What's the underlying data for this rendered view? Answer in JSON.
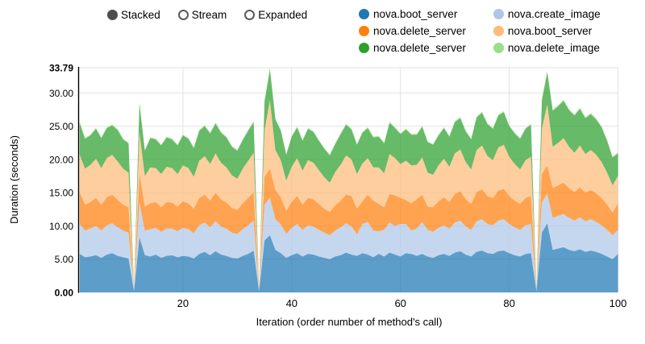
{
  "controls": {
    "options": [
      {
        "label": "Stacked",
        "selected": true
      },
      {
        "label": "Stream",
        "selected": false
      },
      {
        "label": "Expanded",
        "selected": false
      }
    ]
  },
  "legend": {
    "items": [
      {
        "label": "nova.boot_server",
        "color": "#1f77b4"
      },
      {
        "label": "nova.create_image",
        "color": "#aec7e8"
      },
      {
        "label": "nova.delete_server",
        "color": "#ff7f0e"
      },
      {
        "label": "nova.boot_server",
        "color": "#ffbb78"
      },
      {
        "label": "nova.delete_server",
        "color": "#2ca02c"
      },
      {
        "label": "nova.delete_image",
        "color": "#98df8a"
      }
    ]
  },
  "chart_data": {
    "type": "area",
    "mode": "stacked",
    "title": "",
    "xlabel": "Iteration (order number of method's call)",
    "ylabel": "Duration (seconds)",
    "xlim": [
      1,
      100
    ],
    "ylim": [
      0,
      33.79
    ],
    "x_ticks": [
      20,
      40,
      60,
      80,
      100
    ],
    "y_ticks": [
      0,
      5,
      10,
      15,
      20,
      25,
      30,
      33.79
    ],
    "y_tick_labels": [
      "0.00",
      "5.00",
      "10.00",
      "15.00",
      "20.00",
      "25.00",
      "30.00",
      "33.79"
    ],
    "grid": true,
    "legend_position": "top-right",
    "iterations": 100,
    "series": [
      {
        "name": "nova.boot_server",
        "color": "#1f77b4",
        "values": [
          5.8,
          5.3,
          5.4,
          5.6,
          5.2,
          5.7,
          5.9,
          5.5,
          5.3,
          5.1,
          0.2,
          8.3,
          5.6,
          5.4,
          5.7,
          5.2,
          5.5,
          5.6,
          5.3,
          5.5,
          5.4,
          5.1,
          5.8,
          6.1,
          5.6,
          6.2,
          5.7,
          5.5,
          5.2,
          5.1,
          5.5,
          5.8,
          6.3,
          0.2,
          7.8,
          8.6,
          6.4,
          5.9,
          5.2,
          5.6,
          5.9,
          5.4,
          5.8,
          5.7,
          5.4,
          5.2,
          5.0,
          5.4,
          5.6,
          6.0,
          5.7,
          5.5,
          5.9,
          5.7,
          5.3,
          5.8,
          5.4,
          6.0,
          5.7,
          5.4,
          5.9,
          5.8,
          5.5,
          5.8,
          5.4,
          5.2,
          5.6,
          5.8,
          5.5,
          6.0,
          6.2,
          5.7,
          5.4,
          6.1,
          6.3,
          5.9,
          5.8,
          6.2,
          6.3,
          5.9,
          5.6,
          5.4,
          5.8,
          5.9,
          0.2,
          9.0,
          10.4,
          6.4,
          6.6,
          6.8,
          6.4,
          6.2,
          6.5,
          6.1,
          6.3,
          6.1,
          5.8,
          5.4,
          5.0,
          5.8
        ]
      },
      {
        "name": "nova.create_image",
        "color": "#aec7e8",
        "values": [
          4.5,
          4.0,
          4.2,
          4.4,
          4.1,
          4.4,
          4.5,
          4.3,
          4.0,
          3.9,
          0.1,
          5.2,
          3.7,
          4.1,
          4.0,
          3.9,
          4.1,
          4.0,
          3.9,
          4.2,
          4.1,
          3.8,
          4.3,
          4.4,
          4.2,
          4.5,
          4.2,
          4.1,
          3.8,
          3.7,
          4.0,
          4.3,
          4.5,
          0.1,
          5.4,
          5.6,
          4.6,
          4.3,
          3.6,
          4.1,
          4.4,
          4.0,
          4.3,
          4.2,
          4.0,
          3.8,
          3.6,
          3.9,
          4.2,
          4.4,
          4.2,
          3.2,
          4.4,
          4.9,
          4.0,
          3.4,
          4.0,
          4.5,
          4.3,
          4.9,
          4.4,
          3.5,
          4.1,
          4.8,
          4.0,
          3.9,
          4.1,
          4.3,
          4.1,
          4.5,
          4.6,
          4.2,
          4.0,
          4.6,
          4.7,
          4.4,
          4.3,
          4.6,
          4.7,
          4.4,
          4.2,
          4.0,
          4.3,
          4.4,
          0.1,
          4.6,
          4.4,
          4.8,
          4.9,
          5.0,
          4.8,
          4.6,
          4.8,
          4.6,
          4.7,
          4.5,
          4.3,
          4.0,
          3.6,
          3.6
        ]
      },
      {
        "name": "nova.delete_server",
        "color": "#ff7f0e",
        "values": [
          4.8,
          3.9,
          4.0,
          4.2,
          3.9,
          4.2,
          4.3,
          4.1,
          3.9,
          3.8,
          0.1,
          4.4,
          3.6,
          3.9,
          3.9,
          3.7,
          4.0,
          3.9,
          3.7,
          4.0,
          3.9,
          3.7,
          4.1,
          4.2,
          4.0,
          4.3,
          4.1,
          3.9,
          3.7,
          3.6,
          3.9,
          4.1,
          4.3,
          0.1,
          4.2,
          4.4,
          4.4,
          4.1,
          3.5,
          3.9,
          4.2,
          3.8,
          4.1,
          4.1,
          3.9,
          3.6,
          3.5,
          3.8,
          4.0,
          4.3,
          4.6,
          3.9,
          3.4,
          4.1,
          4.5,
          4.1,
          3.4,
          4.3,
          4.6,
          3.9,
          3.6,
          4.1,
          4.4,
          4.1,
          3.5,
          3.7,
          4.0,
          4.2,
          4.0,
          4.3,
          4.4,
          4.1,
          3.9,
          4.4,
          4.5,
          4.2,
          4.1,
          4.5,
          4.6,
          4.2,
          4.0,
          3.9,
          4.1,
          4.2,
          0.1,
          4.2,
          4.3,
          4.5,
          4.6,
          4.7,
          4.5,
          4.3,
          4.5,
          4.3,
          4.4,
          4.3,
          4.1,
          3.8,
          3.4,
          4.0
        ]
      },
      {
        "name": "nova.boot_server",
        "color": "#ffbb78",
        "values": [
          5.6,
          5.4,
          5.6,
          5.9,
          5.5,
          5.9,
          6.0,
          5.8,
          5.4,
          5.2,
          0.1,
          6.2,
          4.6,
          5.4,
          5.1,
          5.0,
          5.3,
          5.2,
          4.9,
          5.4,
          5.3,
          4.8,
          5.6,
          5.8,
          5.5,
          5.9,
          5.5,
          5.3,
          4.9,
          4.7,
          5.2,
          5.6,
          5.9,
          0.1,
          7.0,
          10.3,
          6.0,
          5.6,
          4.5,
          5.3,
          5.7,
          5.1,
          5.7,
          5.5,
          5.1,
          4.7,
          4.4,
          5.0,
          5.4,
          5.9,
          5.5,
          5.2,
          5.7,
          5.5,
          5.0,
          5.5,
          5.1,
          6.0,
          5.6,
          5.1,
          5.9,
          5.7,
          5.2,
          5.6,
          5.1,
          4.9,
          5.4,
          5.8,
          5.3,
          6.1,
          6.3,
          5.6,
          5.2,
          6.3,
          6.6,
          6.0,
          5.7,
          6.5,
          6.6,
          5.9,
          5.5,
          5.2,
          5.7,
          5.9,
          0.1,
          6.8,
          9.2,
          6.2,
          6.4,
          6.7,
          6.2,
          5.9,
          6.3,
          5.8,
          6.0,
          5.8,
          5.4,
          4.8,
          4.1,
          4.1
        ]
      },
      {
        "name": "nova.delete_server",
        "color": "#2ca02c",
        "values": [
          4.8,
          4.5,
          4.4,
          4.5,
          4.5,
          4.5,
          4.4,
          4.7,
          4.4,
          4.4,
          0.1,
          4.3,
          3.8,
          4.4,
          4.3,
          4.3,
          4.4,
          4.3,
          4.3,
          4.5,
          4.4,
          4.3,
          4.5,
          4.5,
          4.6,
          4.5,
          4.5,
          4.5,
          4.3,
          4.2,
          4.3,
          4.5,
          4.6,
          0.1,
          4.3,
          4.6,
          4.6,
          4.4,
          3.9,
          4.5,
          4.6,
          4.5,
          4.7,
          4.6,
          4.4,
          4.3,
          4.1,
          4.2,
          4.6,
          4.6,
          4.5,
          4.4,
          4.6,
          4.5,
          4.5,
          4.6,
          4.5,
          4.7,
          4.5,
          4.5,
          4.7,
          4.6,
          4.5,
          4.6,
          4.6,
          4.5,
          4.5,
          4.6,
          4.5,
          4.7,
          4.7,
          4.6,
          4.5,
          4.9,
          4.9,
          4.8,
          4.7,
          4.8,
          4.9,
          4.6,
          4.6,
          4.6,
          4.7,
          4.8,
          0.1,
          4.3,
          4.8,
          5.4,
          5.5,
          5.6,
          5.5,
          5.6,
          5.5,
          5.4,
          5.4,
          5.3,
          5.2,
          4.8,
          4.2,
          3.4
        ]
      },
      {
        "name": "nova.delete_image",
        "color": "#98df8a",
        "values": [
          0.15,
          0.14,
          0.16,
          0.15,
          0.13,
          0.16,
          0.15,
          0.14,
          0.13,
          0.12,
          0.02,
          0.15,
          0.12,
          0.14,
          0.13,
          0.13,
          0.14,
          0.13,
          0.13,
          0.15,
          0.14,
          0.13,
          0.15,
          0.16,
          0.14,
          0.16,
          0.15,
          0.14,
          0.13,
          0.12,
          0.14,
          0.15,
          0.16,
          0.02,
          0.15,
          0.29,
          0.16,
          0.15,
          0.12,
          0.14,
          0.15,
          0.13,
          0.15,
          0.15,
          0.13,
          0.13,
          0.12,
          0.13,
          0.15,
          0.16,
          0.14,
          0.13,
          0.15,
          0.15,
          0.13,
          0.15,
          0.13,
          0.16,
          0.15,
          0.13,
          0.15,
          0.15,
          0.13,
          0.15,
          0.13,
          0.13,
          0.14,
          0.15,
          0.14,
          0.16,
          0.16,
          0.14,
          0.13,
          0.16,
          0.17,
          0.15,
          0.14,
          0.16,
          0.17,
          0.15,
          0.13,
          0.13,
          0.15,
          0.15,
          0.02,
          0.15,
          0.2,
          0.16,
          0.17,
          0.17,
          0.16,
          0.16,
          0.16,
          0.15,
          0.16,
          0.15,
          0.14,
          0.13,
          0.12,
          0.11
        ]
      }
    ]
  }
}
